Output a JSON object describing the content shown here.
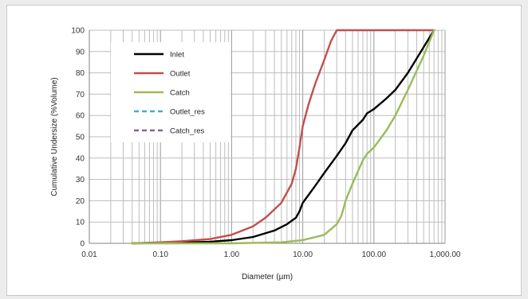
{
  "chart_data": {
    "type": "line",
    "xscale": "log",
    "xlim": [
      0.01,
      1000
    ],
    "ylim": [
      0,
      100
    ],
    "xlabel": "Diameter (µm)",
    "ylabel": "Cumulative Undersize  (%Volume)",
    "xticks": [
      "0.01",
      "0.10",
      "1.00",
      "10.00",
      "100.00",
      "1,000.00"
    ],
    "yticks": [
      "0",
      "10",
      "20",
      "30",
      "40",
      "50",
      "60",
      "70",
      "80",
      "90",
      "100"
    ],
    "grid": true,
    "legend_position": "top-left inside",
    "series": [
      {
        "name": "Inlet",
        "color": "#000000",
        "dash": "solid",
        "x": [
          0.04,
          0.1,
          0.2,
          0.5,
          1,
          2,
          4,
          6,
          8,
          9,
          10,
          15,
          20,
          30,
          40,
          50,
          70,
          80,
          100,
          150,
          200,
          300,
          500,
          700
        ],
        "y": [
          0,
          0.2,
          0.4,
          0.8,
          1.5,
          3,
          6,
          9,
          12,
          15,
          19,
          27,
          33,
          41,
          47,
          53,
          58,
          61,
          63,
          68,
          72,
          80,
          92,
          100
        ]
      },
      {
        "name": "Outlet",
        "color": "#c0504d",
        "dash": "solid",
        "x": [
          0.04,
          0.1,
          0.2,
          0.5,
          1,
          2,
          3,
          5,
          7,
          8,
          9,
          10,
          12,
          15,
          20,
          25,
          30,
          100,
          700
        ],
        "y": [
          0,
          0.5,
          1,
          2,
          4,
          8,
          12,
          19,
          28,
          35,
          45,
          55,
          65,
          75,
          86,
          95,
          100,
          100,
          100
        ]
      },
      {
        "name": "Catch",
        "color": "#9bbb59",
        "dash": "solid",
        "x": [
          0.04,
          1,
          5,
          10,
          20,
          30,
          35,
          40,
          50,
          60,
          70,
          80,
          100,
          150,
          200,
          300,
          500,
          700
        ],
        "y": [
          0,
          0,
          0.5,
          1.5,
          4,
          9,
          13,
          20,
          28,
          34,
          39,
          42,
          45,
          53,
          60,
          72,
          88,
          100
        ]
      },
      {
        "name": "Outlet_res",
        "color": "#4bacc6",
        "dash": "dashed",
        "x": [],
        "y": []
      },
      {
        "name": "Catch_res",
        "color": "#8064a2",
        "dash": "dashed",
        "x": [],
        "y": []
      }
    ]
  }
}
